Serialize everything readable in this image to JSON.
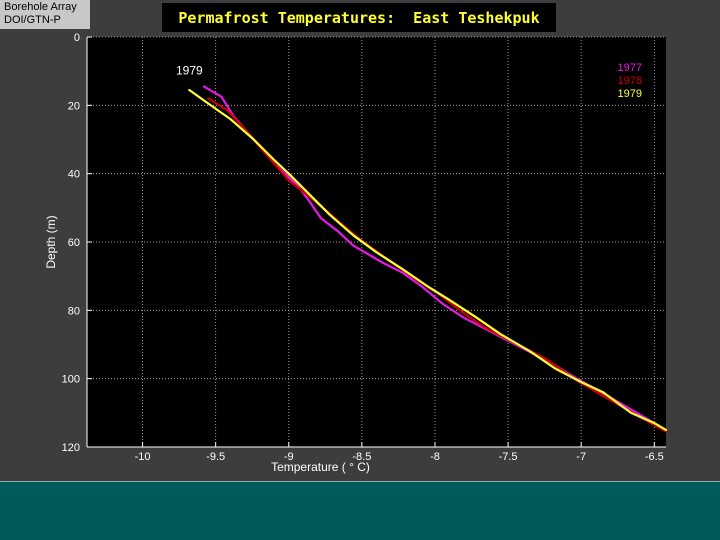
{
  "header": {
    "tag_line1": "Borehole Array",
    "tag_line2": "DOI/GTN-P",
    "title": "Permafrost Temperatures:  East Teshekpuk"
  },
  "chart_data": {
    "type": "line",
    "title": "Permafrost Temperatures:  East Teshekpuk",
    "xlabel": "Temperature ( ° C)",
    "ylabel": "Depth (m)",
    "xlim": [
      -10.38,
      -6.42
    ],
    "ylim": [
      0,
      120
    ],
    "y_inverted": true,
    "grid": true,
    "background": "#000000",
    "legend_placement": "top-right",
    "xticks": [
      -10,
      -9.5,
      -9,
      -8.5,
      -8,
      -7.5,
      -7,
      -6.5
    ],
    "xtick_labels": [
      "-10",
      "-9.5",
      "-9",
      "-8.5",
      "-8",
      "-7.5",
      "-7",
      "-6.5"
    ],
    "yticks": [
      0,
      20,
      40,
      60,
      80,
      100,
      120
    ],
    "ytick_labels": [
      "0",
      "20",
      "40",
      "60",
      "80",
      "100",
      "120"
    ],
    "annotations": [
      {
        "text": "1979",
        "x": -9.68,
        "y": 11
      }
    ],
    "series": [
      {
        "name": "1977",
        "color": "#e619e6",
        "points": [
          [
            -9.58,
            14.5
          ],
          [
            -9.46,
            17.5
          ],
          [
            -9.38,
            23
          ],
          [
            -9.24,
            30
          ],
          [
            -9.1,
            37
          ],
          [
            -9.0,
            41
          ],
          [
            -8.93,
            44
          ],
          [
            -8.86,
            48
          ],
          [
            -8.78,
            53
          ],
          [
            -8.66,
            57
          ],
          [
            -8.56,
            61
          ],
          [
            -8.36,
            66
          ],
          [
            -8.22,
            69
          ],
          [
            -8.09,
            73
          ],
          [
            -7.95,
            78
          ],
          [
            -7.81,
            82
          ],
          [
            -7.63,
            86
          ],
          [
            -7.45,
            90
          ],
          [
            -7.22,
            95
          ],
          [
            -7.03,
            100
          ],
          [
            -6.86,
            104
          ],
          [
            -6.66,
            109
          ],
          [
            -6.5,
            113
          ],
          [
            -6.42,
            115
          ]
        ]
      },
      {
        "name": "1978",
        "color": "#cc0000",
        "points": [
          [
            -9.55,
            18
          ],
          [
            -9.42,
            21.5
          ],
          [
            -9.3,
            27
          ],
          [
            -9.14,
            35
          ],
          [
            -9.0,
            42
          ],
          [
            -8.82,
            48
          ],
          [
            -8.66,
            54
          ],
          [
            -8.52,
            59
          ],
          [
            -8.36,
            64
          ],
          [
            -8.16,
            70
          ],
          [
            -7.98,
            75
          ],
          [
            -7.83,
            80
          ],
          [
            -7.66,
            85
          ],
          [
            -7.48,
            89
          ],
          [
            -7.25,
            94
          ],
          [
            -7.05,
            100
          ],
          [
            -6.85,
            105
          ],
          [
            -6.65,
            110
          ],
          [
            -6.48,
            114
          ],
          [
            -6.42,
            115.5
          ]
        ]
      },
      {
        "name": "1979",
        "color": "#ffff33",
        "points": [
          [
            -9.68,
            15.5
          ],
          [
            -9.55,
            19.5
          ],
          [
            -9.4,
            24
          ],
          [
            -9.24,
            30
          ],
          [
            -9.1,
            36
          ],
          [
            -9.0,
            40
          ],
          [
            -8.86,
            46
          ],
          [
            -8.72,
            52
          ],
          [
            -8.56,
            58
          ],
          [
            -8.4,
            63
          ],
          [
            -8.22,
            68
          ],
          [
            -8.05,
            73
          ],
          [
            -7.9,
            77
          ],
          [
            -7.72,
            82
          ],
          [
            -7.55,
            87
          ],
          [
            -7.35,
            92
          ],
          [
            -7.18,
            97
          ],
          [
            -7.0,
            101
          ],
          [
            -6.85,
            104
          ],
          [
            -6.66,
            110
          ],
          [
            -6.5,
            113
          ],
          [
            -6.42,
            115
          ]
        ]
      }
    ]
  }
}
